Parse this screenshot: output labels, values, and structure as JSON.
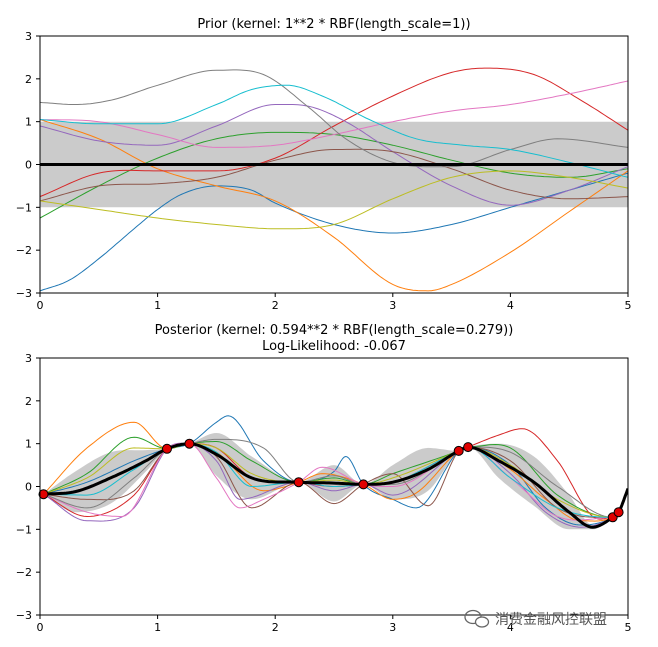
{
  "watermark": "消费金融风控联盟",
  "chart_data": [
    {
      "type": "line",
      "title": "Prior (kernel:  1**2 * RBF(length_scale=1))",
      "xlim": [
        0,
        5
      ],
      "ylim": [
        -3,
        3
      ],
      "xticks": [
        "0",
        "1",
        "2",
        "3",
        "4",
        "5"
      ],
      "yticks": [
        "3",
        "2",
        "1",
        "0",
        "−1",
        "−2",
        "−3"
      ],
      "mean": {
        "x": [
          0,
          5
        ],
        "y": [
          0,
          0
        ],
        "color": "#000000"
      },
      "band": {
        "x": [
          0,
          5
        ],
        "lower": [
          -1,
          -1
        ],
        "upper": [
          1,
          1
        ],
        "color": "#c8c8c8"
      },
      "series": [
        {
          "color": "#1f77b4",
          "x": [
            0,
            0.25,
            0.5,
            0.8,
            1.0,
            1.2,
            1.5,
            1.8,
            2.0,
            2.5,
            3.0,
            3.5,
            4.0,
            4.5,
            5.0
          ],
          "y": [
            -2.95,
            -2.7,
            -2.2,
            -1.5,
            -1.05,
            -0.7,
            -0.5,
            -0.6,
            -0.9,
            -1.4,
            -1.6,
            -1.4,
            -1.0,
            -0.6,
            -0.2
          ]
        },
        {
          "color": "#ff7f0e",
          "x": [
            0,
            0.5,
            1.0,
            1.5,
            2.0,
            2.5,
            3.0,
            3.3,
            3.5,
            4.0,
            4.5,
            5.0
          ],
          "y": [
            1.05,
            0.6,
            -0.1,
            -0.5,
            -0.85,
            -1.7,
            -2.8,
            -2.95,
            -2.8,
            -2.05,
            -1.1,
            -0.15
          ]
        },
        {
          "color": "#2ca02c",
          "x": [
            0,
            0.5,
            1.0,
            1.5,
            2.0,
            2.5,
            3.0,
            3.5,
            4.0,
            4.5,
            5.0
          ],
          "y": [
            -1.25,
            -0.5,
            0.15,
            0.6,
            0.75,
            0.7,
            0.45,
            0.1,
            -0.2,
            -0.3,
            -0.1
          ]
        },
        {
          "color": "#d62728",
          "x": [
            0,
            0.5,
            1.0,
            1.5,
            2.0,
            2.5,
            3.0,
            3.5,
            3.8,
            4.2,
            4.6,
            5.0
          ],
          "y": [
            -0.75,
            -0.2,
            -0.15,
            -0.15,
            0.15,
            0.9,
            1.6,
            2.15,
            2.25,
            2.1,
            1.5,
            0.8
          ]
        },
        {
          "color": "#9467bd",
          "x": [
            0,
            0.5,
            1.0,
            1.5,
            2.0,
            2.3,
            2.6,
            3.0,
            3.5,
            4.0,
            4.5,
            5.0
          ],
          "y": [
            0.9,
            0.55,
            0.45,
            0.9,
            1.4,
            1.35,
            1.0,
            0.3,
            -0.5,
            -0.95,
            -0.6,
            -0.05
          ]
        },
        {
          "color": "#8c564b",
          "x": [
            0,
            0.5,
            1.0,
            1.5,
            2.0,
            2.5,
            3.0,
            3.5,
            4.0,
            4.5,
            5.0
          ],
          "y": [
            -0.85,
            -0.5,
            -0.45,
            -0.3,
            0.1,
            0.35,
            0.3,
            -0.1,
            -0.6,
            -0.8,
            -0.75
          ]
        },
        {
          "color": "#e377c2",
          "x": [
            0,
            0.5,
            1.0,
            1.5,
            2.0,
            2.5,
            3.0,
            3.5,
            4.0,
            4.5,
            5.0
          ],
          "y": [
            1.05,
            1.0,
            0.7,
            0.4,
            0.45,
            0.7,
            1.0,
            1.25,
            1.4,
            1.65,
            1.95
          ]
        },
        {
          "color": "#7f7f7f",
          "x": [
            0,
            0.3,
            0.6,
            1.0,
            1.5,
            1.9,
            2.3,
            2.6,
            3.0,
            3.5,
            4.0,
            4.4,
            5.0
          ],
          "y": [
            1.45,
            1.4,
            1.5,
            1.85,
            2.2,
            2.1,
            1.3,
            0.6,
            0.05,
            -0.05,
            0.35,
            0.6,
            0.4
          ]
        },
        {
          "color": "#bcbd22",
          "x": [
            0,
            0.5,
            1.0,
            1.5,
            2.0,
            2.5,
            3.0,
            3.5,
            4.0,
            4.5,
            5.0
          ],
          "y": [
            -0.85,
            -1.05,
            -1.25,
            -1.4,
            -1.5,
            -1.4,
            -0.8,
            -0.3,
            -0.15,
            -0.3,
            -0.55
          ]
        },
        {
          "color": "#17becf",
          "x": [
            0,
            0.5,
            1.0,
            1.5,
            1.8,
            2.1,
            2.4,
            2.8,
            3.2,
            3.6,
            4.0,
            4.5,
            5.0
          ],
          "y": [
            1.05,
            0.95,
            0.95,
            1.4,
            1.75,
            1.85,
            1.6,
            1.05,
            0.6,
            0.45,
            0.35,
            0.05,
            -0.3
          ]
        }
      ]
    },
    {
      "type": "line",
      "title": "Posterior (kernel: 0.594**2 * RBF(length_scale=0.279))",
      "subtitle": "Log-Likelihood: -0.067",
      "xlim": [
        0,
        5
      ],
      "ylim": [
        -3,
        3
      ],
      "xticks": [
        "0",
        "1",
        "2",
        "3",
        "4",
        "5"
      ],
      "yticks": [
        "3",
        "2",
        "1",
        "0",
        "−1",
        "−2",
        "−3"
      ],
      "mean": {
        "color": "#000000",
        "x": [
          0.03,
          0.3,
          0.6,
          0.9,
          1.08,
          1.27,
          1.5,
          1.8,
          2.2,
          2.5,
          2.75,
          3.0,
          3.3,
          3.56,
          3.64,
          3.9,
          4.2,
          4.5,
          4.7,
          4.87,
          4.92,
          5.0
        ],
        "y": [
          -0.18,
          -0.12,
          0.2,
          0.6,
          0.88,
          1.0,
          0.75,
          0.2,
          0.1,
          0.08,
          0.05,
          0.1,
          0.4,
          0.83,
          0.92,
          0.6,
          0.1,
          -0.6,
          -0.95,
          -0.72,
          -0.6,
          -0.05
        ]
      },
      "band": {
        "color": "#c8c8c8",
        "x": [
          0.03,
          0.3,
          0.6,
          0.9,
          1.08,
          1.27,
          1.5,
          1.8,
          2.2,
          2.5,
          2.75,
          3.0,
          3.3,
          3.56,
          3.64,
          3.9,
          4.2,
          4.5,
          4.7,
          4.87,
          4.92,
          5.0
        ],
        "lower": [
          -0.18,
          -0.6,
          -0.4,
          0.35,
          0.88,
          1.0,
          0.25,
          -0.3,
          0.1,
          -0.35,
          0.05,
          -0.3,
          -0.1,
          0.83,
          0.92,
          0.2,
          -0.45,
          -1.0,
          -1.0,
          -0.72,
          -0.6,
          -0.05
        ],
        "upper": [
          -0.18,
          0.35,
          0.8,
          0.85,
          0.88,
          1.0,
          1.25,
          0.7,
          0.1,
          0.5,
          0.05,
          0.5,
          0.9,
          0.83,
          0.92,
          1.0,
          0.7,
          -0.2,
          -0.9,
          -0.72,
          -0.6,
          -0.05
        ]
      },
      "observations": {
        "x": [
          0.03,
          1.08,
          1.27,
          2.2,
          2.75,
          3.56,
          3.64,
          4.87,
          4.92
        ],
        "y": [
          -0.18,
          0.88,
          1.0,
          0.1,
          0.05,
          0.83,
          0.92,
          -0.72,
          -0.6
        ],
        "color": "#e00000"
      },
      "series": [
        {
          "color": "#1f77b4",
          "x": [
            0.03,
            0.4,
            0.8,
            1.08,
            1.27,
            1.5,
            1.6,
            1.9,
            2.2,
            2.5,
            2.6,
            2.75,
            3.0,
            3.2,
            3.56,
            3.64,
            4.0,
            4.3,
            4.6,
            4.87,
            4.92
          ],
          "y": [
            -0.18,
            0.1,
            0.6,
            0.88,
            1.0,
            1.5,
            1.65,
            0.6,
            0.1,
            0.35,
            0.7,
            0.05,
            -0.3,
            -0.5,
            0.83,
            0.92,
            0.5,
            -0.5,
            -0.9,
            -0.72,
            -0.6
          ]
        },
        {
          "color": "#ff7f0e",
          "x": [
            0.03,
            0.4,
            0.8,
            1.08,
            1.27,
            1.5,
            1.9,
            2.2,
            2.4,
            2.75,
            3.0,
            3.2,
            3.56,
            3.64,
            4.0,
            4.3,
            4.6,
            4.87,
            4.92
          ],
          "y": [
            -0.18,
            0.9,
            1.5,
            0.88,
            1.0,
            0.8,
            -0.1,
            0.1,
            0.3,
            0.05,
            -0.3,
            -0.15,
            0.83,
            0.92,
            0.4,
            -0.3,
            -0.8,
            -0.72,
            -0.6
          ]
        },
        {
          "color": "#2ca02c",
          "x": [
            0.03,
            0.4,
            0.8,
            1.08,
            1.27,
            1.5,
            1.8,
            2.2,
            2.5,
            2.75,
            3.0,
            3.56,
            3.64,
            4.0,
            4.4,
            4.87,
            4.92
          ],
          "y": [
            -0.18,
            0.3,
            1.15,
            0.88,
            1.0,
            1.05,
            0.6,
            0.1,
            0.2,
            0.05,
            0.3,
            0.83,
            0.92,
            0.9,
            -0.2,
            -0.72,
            -0.6
          ]
        },
        {
          "color": "#d62728",
          "x": [
            0.03,
            0.4,
            0.8,
            1.08,
            1.27,
            1.5,
            1.8,
            2.2,
            2.5,
            2.75,
            3.0,
            3.56,
            3.64,
            3.9,
            4.1,
            4.4,
            4.7,
            4.87,
            4.92
          ],
          "y": [
            -0.18,
            -0.7,
            -0.2,
            0.88,
            1.0,
            0.9,
            0.2,
            0.1,
            0.0,
            0.05,
            0.1,
            0.83,
            0.92,
            1.2,
            1.35,
            0.6,
            -0.7,
            -0.72,
            -0.6
          ]
        },
        {
          "color": "#9467bd",
          "x": [
            0.03,
            0.4,
            0.8,
            1.08,
            1.27,
            1.5,
            1.7,
            2.2,
            2.5,
            2.75,
            3.0,
            3.56,
            3.64,
            4.0,
            4.3,
            4.6,
            4.87,
            4.92
          ],
          "y": [
            -0.18,
            -0.8,
            -0.5,
            0.88,
            1.0,
            0.6,
            -0.3,
            0.1,
            -0.1,
            0.05,
            -0.2,
            0.83,
            0.92,
            0.3,
            -0.6,
            -0.95,
            -0.72,
            -0.6
          ]
        },
        {
          "color": "#8c564b",
          "x": [
            0.03,
            0.4,
            0.8,
            1.08,
            1.27,
            1.5,
            1.8,
            2.2,
            2.5,
            2.75,
            3.0,
            3.3,
            3.56,
            3.64,
            4.0,
            4.4,
            4.87,
            4.92
          ],
          "y": [
            -0.18,
            -0.3,
            -0.1,
            0.88,
            1.0,
            0.7,
            -0.5,
            0.1,
            -0.4,
            0.05,
            0.3,
            -0.45,
            0.83,
            0.92,
            0.6,
            -0.5,
            -0.72,
            -0.6
          ]
        },
        {
          "color": "#e377c2",
          "x": [
            0.03,
            0.4,
            0.7,
            1.08,
            1.27,
            1.5,
            1.7,
            1.9,
            2.2,
            2.4,
            2.75,
            3.0,
            3.56,
            3.64,
            4.0,
            4.4,
            4.87,
            4.92
          ],
          "y": [
            -0.18,
            -0.6,
            -0.7,
            0.88,
            1.0,
            0.2,
            -0.5,
            -0.3,
            0.1,
            0.45,
            0.05,
            0.0,
            0.83,
            0.92,
            0.2,
            -0.7,
            -0.72,
            -0.6
          ]
        },
        {
          "color": "#7f7f7f",
          "x": [
            0.03,
            0.4,
            0.8,
            1.08,
            1.27,
            1.5,
            1.9,
            2.2,
            2.5,
            2.75,
            3.0,
            3.56,
            3.64,
            4.0,
            4.4,
            4.87,
            4.92
          ],
          "y": [
            -0.18,
            -0.5,
            0.2,
            0.88,
            1.0,
            1.1,
            0.9,
            0.1,
            0.25,
            0.05,
            0.05,
            0.83,
            0.92,
            0.8,
            0.0,
            -0.72,
            -0.6
          ]
        },
        {
          "color": "#bcbd22",
          "x": [
            0.03,
            0.4,
            0.8,
            1.08,
            1.27,
            1.5,
            1.8,
            2.2,
            2.5,
            2.75,
            3.0,
            3.56,
            3.64,
            4.0,
            4.4,
            4.87,
            4.92
          ],
          "y": [
            -0.18,
            0.2,
            0.9,
            0.88,
            1.0,
            0.9,
            0.3,
            0.1,
            0.15,
            0.05,
            0.2,
            0.83,
            0.92,
            0.5,
            -0.3,
            -0.72,
            -0.6
          ]
        },
        {
          "color": "#17becf",
          "x": [
            0.03,
            0.4,
            0.8,
            1.08,
            1.27,
            1.5,
            1.8,
            2.2,
            2.5,
            2.75,
            3.0,
            3.56,
            3.64,
            4.0,
            4.4,
            4.87,
            4.92
          ],
          "y": [
            -0.18,
            -0.2,
            0.4,
            0.88,
            1.0,
            0.8,
            0.0,
            0.1,
            0.0,
            0.05,
            0.1,
            0.83,
            0.92,
            0.2,
            -0.5,
            -0.72,
            -0.6
          ]
        }
      ]
    }
  ]
}
